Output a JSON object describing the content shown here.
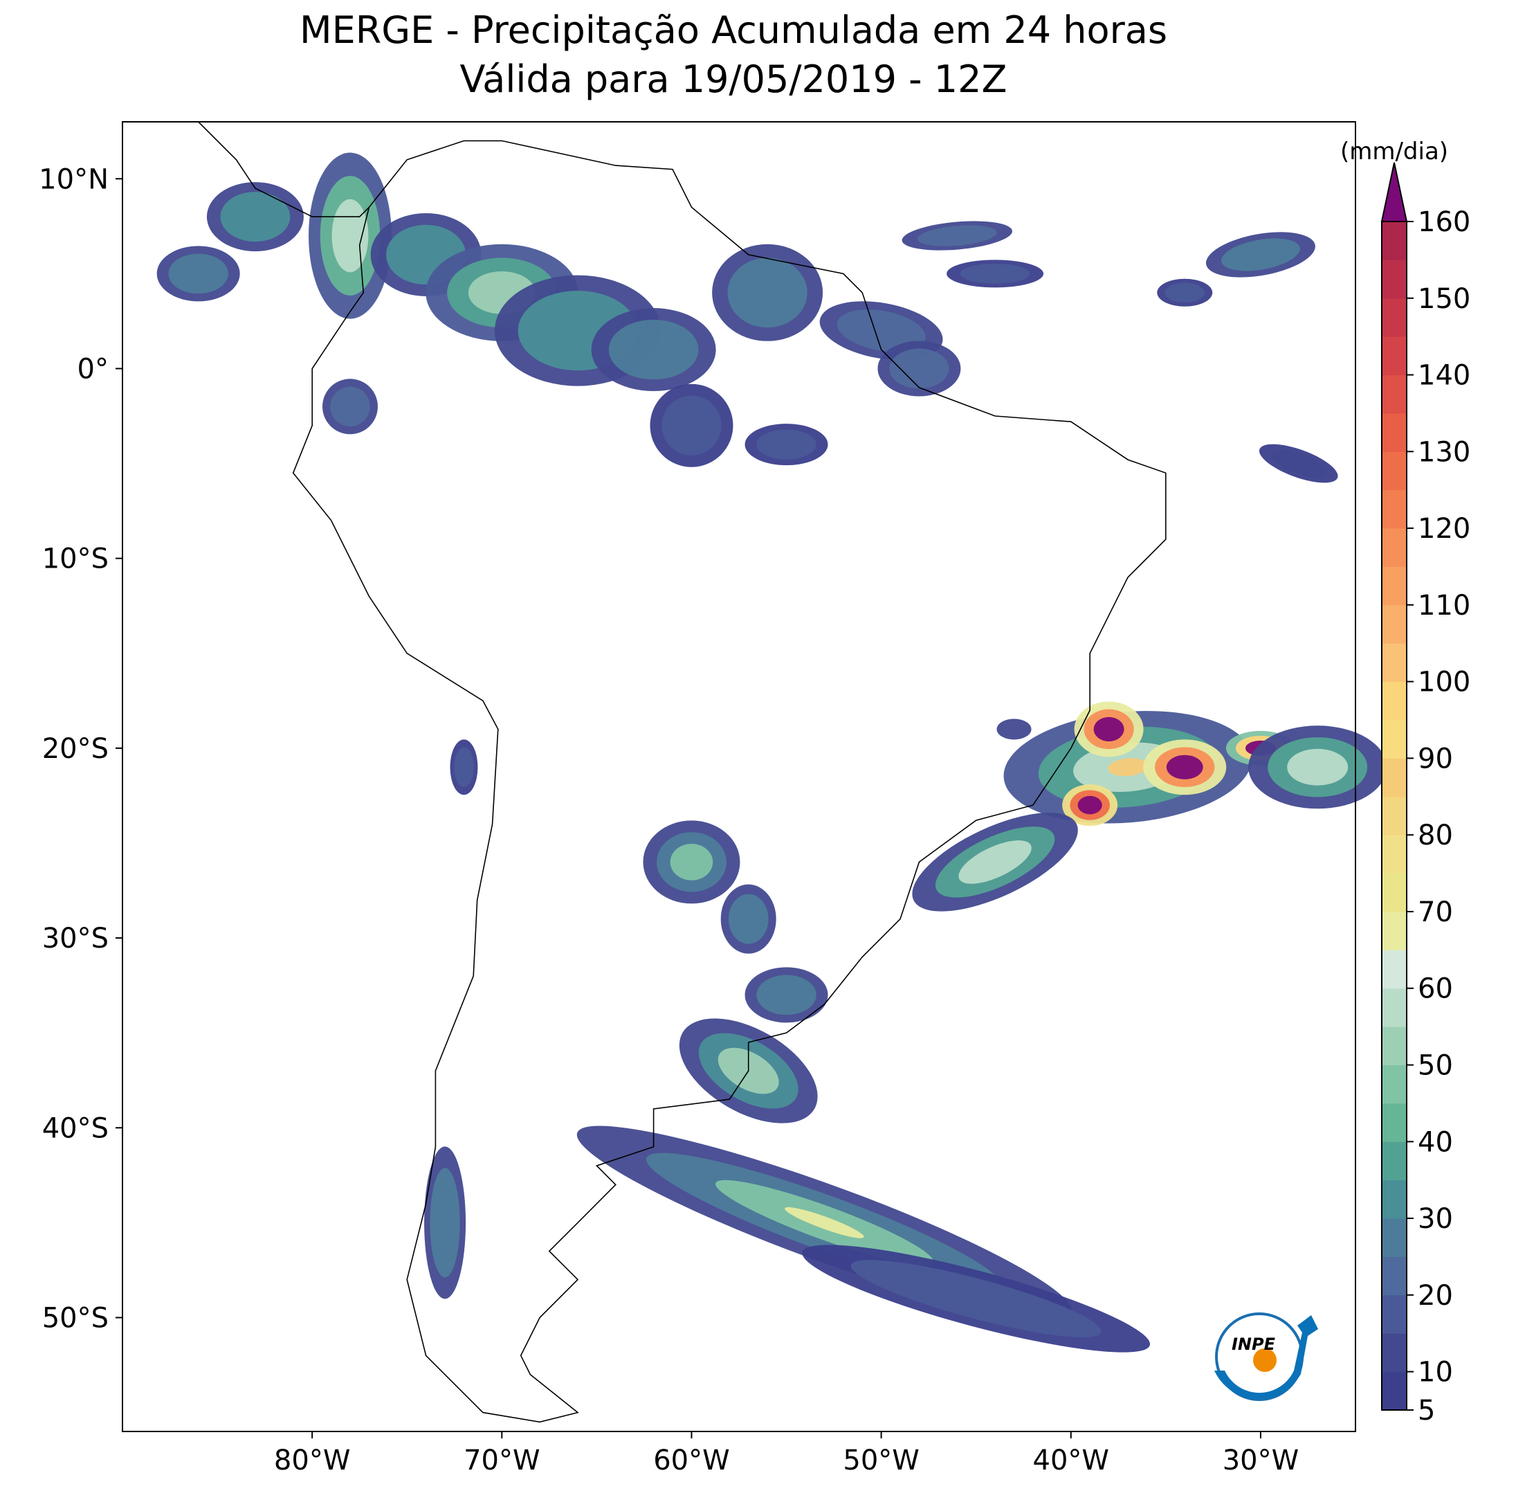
{
  "chart_data": {
    "type": "map",
    "title": "MERGE - Precipitação Acumulada em 24 horas",
    "subtitle": "Válida para 19/05/2019 - 12Z",
    "xlim": [
      -90,
      -25
    ],
    "ylim": [
      -56,
      13
    ],
    "xticks": [
      {
        "value": -80,
        "label": "80°W"
      },
      {
        "value": -70,
        "label": "70°W"
      },
      {
        "value": -60,
        "label": "60°W"
      },
      {
        "value": -50,
        "label": "50°W"
      },
      {
        "value": -40,
        "label": "40°W"
      },
      {
        "value": -30,
        "label": "30°W"
      }
    ],
    "yticks": [
      {
        "value": 10,
        "label": "10°N"
      },
      {
        "value": 0,
        "label": "0°"
      },
      {
        "value": -10,
        "label": "10°S"
      },
      {
        "value": -20,
        "label": "20°S"
      },
      {
        "value": -30,
        "label": "30°S"
      },
      {
        "value": -40,
        "label": "40°S"
      },
      {
        "value": -50,
        "label": "50°S"
      }
    ],
    "colorbar": {
      "label": "(mm/dia)",
      "lim": [
        5,
        160
      ],
      "ticks": [
        5,
        10,
        20,
        30,
        40,
        50,
        60,
        70,
        80,
        90,
        100,
        110,
        120,
        130,
        140,
        150,
        160
      ],
      "levels": [
        5,
        10,
        15,
        20,
        25,
        30,
        35,
        40,
        45,
        50,
        55,
        60,
        65,
        70,
        75,
        80,
        85,
        90,
        95,
        100,
        105,
        110,
        115,
        120,
        125,
        130,
        135,
        140,
        145,
        150,
        155,
        160
      ],
      "colors": [
        "#3b3f8c",
        "#42498f",
        "#4a5a98",
        "#4f6a9c",
        "#4d7c9a",
        "#4a8e98",
        "#52a293",
        "#66b597",
        "#80c3a5",
        "#9dcfb4",
        "#b9dcc8",
        "#d4e8dd",
        "#e8eba0",
        "#eae58a",
        "#f0e08a",
        "#f3d680",
        "#f6cb78",
        "#f9dc80",
        "#fbd57a",
        "#fac276",
        "#f8b06b",
        "#f7a060",
        "#f59058",
        "#f37f50",
        "#ef6e4a",
        "#e95e47",
        "#df5047",
        "#d44347",
        "#c83848",
        "#bb2f4a",
        "#ad264c"
      ],
      "extend_color": "#7a0a78"
    },
    "logo_text": "INPE"
  }
}
